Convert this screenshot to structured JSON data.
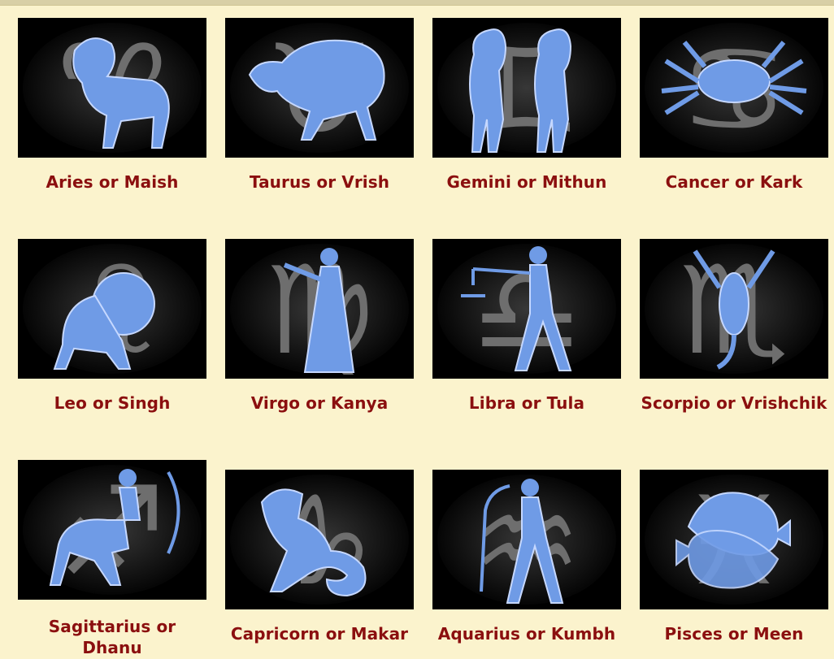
{
  "signs": [
    {
      "id": "aries",
      "label": "Aries or Maish",
      "glyph": "♈",
      "icon": "ram-icon"
    },
    {
      "id": "taurus",
      "label": "Taurus or Vrish",
      "glyph": "♉",
      "icon": "bull-icon"
    },
    {
      "id": "gemini",
      "label": "Gemini or Mithun",
      "glyph": "♊",
      "icon": "twins-icon"
    },
    {
      "id": "cancer",
      "label": "Cancer or Kark",
      "glyph": "♋",
      "icon": "crab-icon"
    },
    {
      "id": "leo",
      "label": "Leo or Singh",
      "glyph": "♌",
      "icon": "lion-icon"
    },
    {
      "id": "virgo",
      "label": "Virgo or Kanya",
      "glyph": "♍",
      "icon": "maiden-icon"
    },
    {
      "id": "libra",
      "label": "Libra or Tula",
      "glyph": "♎",
      "icon": "scales-icon"
    },
    {
      "id": "scorpio",
      "label": "Scorpio or Vrishchik",
      "glyph": "♏",
      "icon": "scorpion-icon"
    },
    {
      "id": "sagittarius",
      "label": "Sagittarius or Dhanu",
      "glyph": "♐",
      "icon": "archer-icon"
    },
    {
      "id": "capricorn",
      "label": "Capricorn or Makar",
      "glyph": "♑",
      "icon": "goat-icon"
    },
    {
      "id": "aquarius",
      "label": "Aquarius or Kumbh",
      "glyph": "♒",
      "icon": "water-bearer-icon"
    },
    {
      "id": "pisces",
      "label": "Pisces or Meen",
      "glyph": "♓",
      "icon": "fish-icon"
    }
  ],
  "colors": {
    "page_background": "#fbf3cd",
    "caption": "#8b0f0f",
    "figure_blue": "#6f9be6",
    "glyph_gray": "#6e6e6e"
  }
}
